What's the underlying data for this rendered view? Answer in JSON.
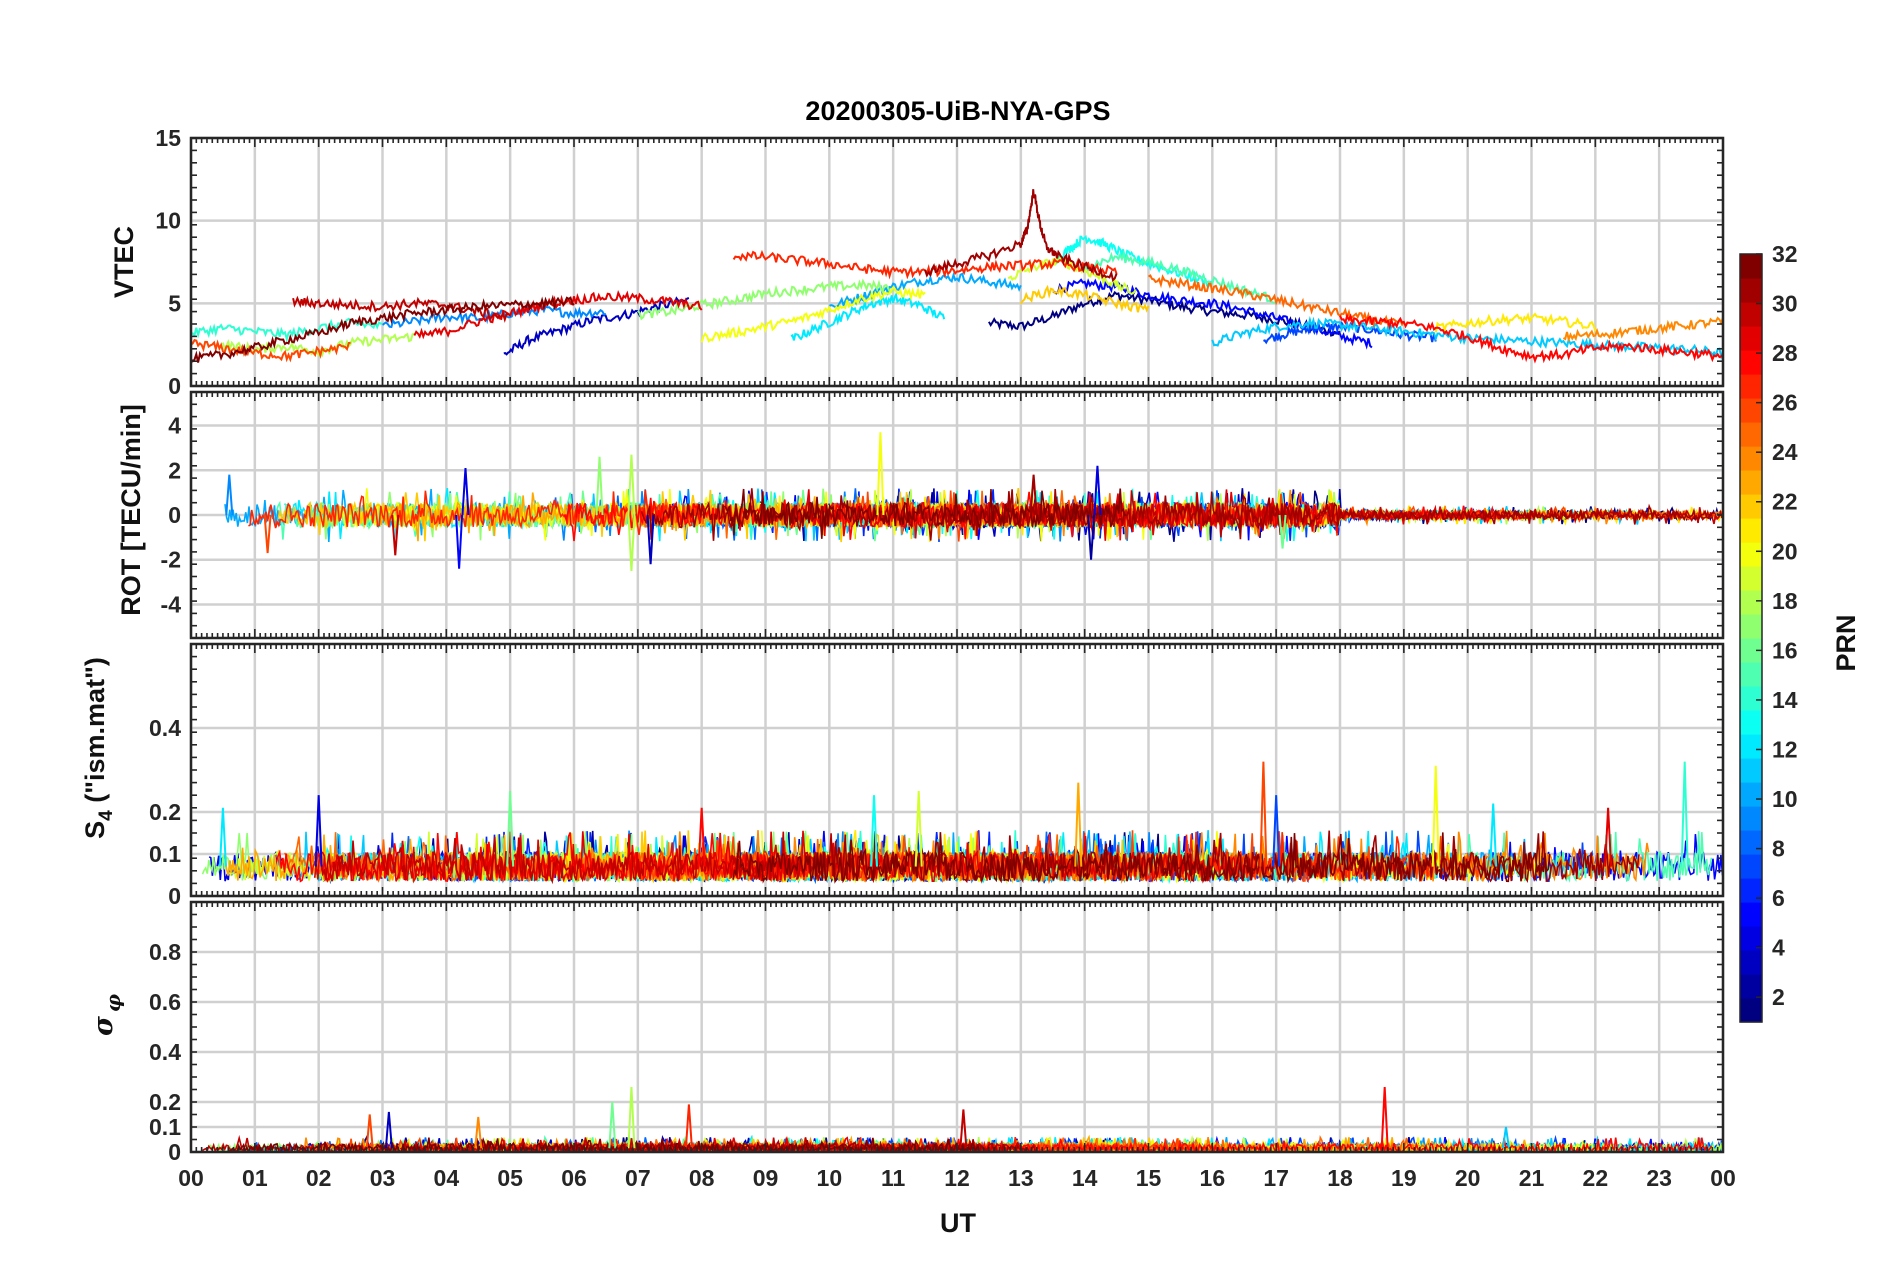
{
  "chart_data": {
    "type": "line",
    "title": "20200305-UiB-NYA-GPS",
    "xlabel": "UT",
    "x_tick_labels": [
      "00",
      "01",
      "02",
      "03",
      "04",
      "05",
      "06",
      "07",
      "08",
      "09",
      "10",
      "11",
      "12",
      "13",
      "14",
      "15",
      "16",
      "17",
      "18",
      "19",
      "20",
      "21",
      "22",
      "23",
      "00"
    ],
    "xlim": [
      0,
      24
    ],
    "grid": true,
    "colorbar": {
      "label": "PRN",
      "colormap": "jet",
      "range": [
        1,
        32
      ],
      "tick_labels": [
        "2",
        "4",
        "6",
        "8",
        "10",
        "12",
        "14",
        "16",
        "18",
        "20",
        "22",
        "24",
        "26",
        "28",
        "30",
        "32"
      ]
    },
    "panels": [
      {
        "id": "vtec",
        "ylabel": "VTEC",
        "ylim": [
          0,
          15
        ],
        "y_tick_labels": [
          "0",
          "5",
          "10",
          "15"
        ],
        "series": [
          {
            "prn": 1,
            "x": [
              12.5,
              13.0,
              13.5,
              14.0,
              14.5,
              15.0,
              15.5,
              16.0,
              16.5,
              17.0,
              17.5,
              18.0
            ],
            "y": [
              3.8,
              3.6,
              4.2,
              5.0,
              5.5,
              5.2,
              4.8,
              4.5,
              4.3,
              4.0,
              3.6,
              3.2
            ]
          },
          {
            "prn": 3,
            "x": [
              4.9,
              5.3,
              5.8,
              6.3,
              6.8,
              7.3,
              7.8
            ],
            "y": [
              1.9,
              2.8,
              3.4,
              4.0,
              4.3,
              4.8,
              5.2
            ]
          },
          {
            "prn": 5,
            "x": [
              13.5,
              14.0,
              14.5,
              15.0,
              15.5,
              16.0,
              16.5,
              17.0,
              17.5,
              18.0,
              18.5
            ],
            "y": [
              5.8,
              6.2,
              6.0,
              5.5,
              5.2,
              5.0,
              4.6,
              4.1,
              3.6,
              3.0,
              2.6
            ]
          },
          {
            "prn": 7,
            "x": [
              16.8,
              17.2,
              17.6,
              18.0,
              18.5,
              19.0,
              19.5
            ],
            "y": [
              2.8,
              3.2,
              3.5,
              3.6,
              3.4,
              3.1,
              2.9
            ]
          },
          {
            "prn": 9,
            "x": [
              3.0,
              3.5,
              4.0,
              4.5,
              5.0,
              5.5,
              6.0,
              6.5
            ],
            "y": [
              3.6,
              3.9,
              4.2,
              4.1,
              4.4,
              4.6,
              4.4,
              4.5
            ]
          },
          {
            "prn": 10,
            "x": [
              10.0,
              10.5,
              11.0,
              11.5,
              12.0,
              12.5,
              13.0
            ],
            "y": [
              4.8,
              5.4,
              6.0,
              6.4,
              6.6,
              6.3,
              6.0
            ]
          },
          {
            "prn": 11,
            "x": [
              16.0,
              16.5,
              17.0,
              17.5,
              18.0,
              18.5,
              19.0,
              19.5,
              20.0,
              20.5,
              21.0,
              21.5,
              22.0,
              22.5,
              23.0,
              23.5,
              24.0
            ],
            "y": [
              2.6,
              3.2,
              3.6,
              3.8,
              3.7,
              3.5,
              3.3,
              3.1,
              2.9,
              2.8,
              2.7,
              2.6,
              2.5,
              2.4,
              2.3,
              2.2,
              2.0
            ]
          },
          {
            "prn": 12,
            "x": [
              9.4,
              9.8,
              10.2,
              10.6,
              11.0,
              11.4,
              11.8
            ],
            "y": [
              2.8,
              3.5,
              4.2,
              4.9,
              5.3,
              4.9,
              4.1
            ]
          },
          {
            "prn": 13,
            "x": [
              13.5,
              13.8,
              14.0,
              14.3,
              14.6,
              15.0,
              15.5,
              16.0
            ],
            "y": [
              7.5,
              8.4,
              9.0,
              8.6,
              8.0,
              7.4,
              6.8,
              6.2
            ]
          },
          {
            "prn": 14,
            "x": [
              0.0,
              0.5,
              1.0,
              1.5,
              2.0,
              2.5,
              3.0
            ],
            "y": [
              3.2,
              3.5,
              3.3,
              3.1,
              3.5,
              3.8,
              3.6
            ]
          },
          {
            "prn": 15,
            "x": [
              14.0,
              14.5,
              15.0,
              15.5,
              16.0,
              16.5,
              17.0
            ],
            "y": [
              7.2,
              7.8,
              7.5,
              7.0,
              6.4,
              5.8,
              5.2
            ]
          },
          {
            "prn": 17,
            "x": [
              7.0,
              7.5,
              8.0,
              8.5,
              9.0,
              9.5,
              10.0,
              10.5,
              11.0
            ],
            "y": [
              4.3,
              4.5,
              4.9,
              5.2,
              5.6,
              5.8,
              6.0,
              6.1,
              5.9
            ]
          },
          {
            "prn": 18,
            "x": [
              0.5,
              1.0,
              1.5,
              2.0,
              2.5,
              3.0,
              3.5
            ],
            "y": [
              2.5,
              2.2,
              2.4,
              2.1,
              2.6,
              2.8,
              3.0
            ]
          },
          {
            "prn": 19,
            "x": [
              12.8,
              13.2,
              13.6,
              14.0,
              14.4,
              14.8
            ],
            "y": [
              6.5,
              7.2,
              7.6,
              7.0,
              6.3,
              5.6
            ]
          },
          {
            "prn": 20,
            "x": [
              8.0,
              8.5,
              9.0,
              9.5,
              10.0,
              10.5,
              11.0,
              11.5
            ],
            "y": [
              2.9,
              3.2,
              3.6,
              4.0,
              4.6,
              5.3,
              5.7,
              5.5
            ]
          },
          {
            "prn": 21,
            "x": [
              19.5,
              20.0,
              20.5,
              21.0,
              21.5,
              22.0
            ],
            "y": [
              3.5,
              3.8,
              4.0,
              4.1,
              3.9,
              3.6
            ]
          },
          {
            "prn": 22,
            "x": [
              13.0,
              13.5,
              14.0,
              14.5,
              15.0
            ],
            "y": [
              5.2,
              5.8,
              5.5,
              5.0,
              4.6
            ]
          },
          {
            "prn": 24,
            "x": [
              21.5,
              22.0,
              22.5,
              23.0,
              23.5,
              24.0
            ],
            "y": [
              3.0,
              3.1,
              3.3,
              3.5,
              3.7,
              3.9
            ]
          },
          {
            "prn": 25,
            "x": [
              15.0,
              15.5,
              16.0,
              16.5,
              17.0,
              17.5,
              18.0,
              18.5,
              19.0
            ],
            "y": [
              6.5,
              6.2,
              5.9,
              5.6,
              5.2,
              4.8,
              4.4,
              4.0,
              3.7
            ]
          },
          {
            "prn": 26,
            "x": [
              0.0,
              0.5,
              1.0,
              1.5,
              2.0,
              2.5
            ],
            "y": [
              2.6,
              2.3,
              2.0,
              1.8,
              2.1,
              2.4
            ]
          },
          {
            "prn": 27,
            "x": [
              8.5,
              9.0,
              9.5,
              10.0,
              10.5,
              11.0,
              11.5,
              12.0,
              12.5,
              13.0,
              13.5,
              14.0,
              14.5
            ],
            "y": [
              7.9,
              7.8,
              7.6,
              7.4,
              7.1,
              6.9,
              6.9,
              7.0,
              7.2,
              7.3,
              7.4,
              7.2,
              6.9
            ]
          },
          {
            "prn": 28,
            "x": [
              18.0,
              18.5,
              19.0,
              19.5,
              20.0,
              20.5,
              21.0,
              21.5,
              22.0,
              22.5,
              23.0,
              23.5,
              24.0
            ],
            "y": [
              4.0,
              3.9,
              3.8,
              3.5,
              3.0,
              2.3,
              1.8,
              1.9,
              2.3,
              2.4,
              2.2,
              2.0,
              1.8
            ]
          },
          {
            "prn": 29,
            "x": [
              3.5,
              4.0,
              4.5,
              5.0,
              5.5,
              6.0,
              6.5,
              7.0,
              7.5,
              8.0
            ],
            "y": [
              3.0,
              3.3,
              3.9,
              4.4,
              4.9,
              5.2,
              5.4,
              5.3,
              5.1,
              4.8
            ]
          },
          {
            "prn": 30,
            "x": [
              1.6,
              2.0,
              2.5,
              3.0,
              3.5,
              4.0,
              4.5,
              5.0
            ],
            "y": [
              5.1,
              5.0,
              4.9,
              4.8,
              5.0,
              4.9,
              4.5,
              4.1
            ]
          },
          {
            "prn": 31,
            "x": [
              11.5,
              12.0,
              12.5,
              13.0,
              13.1,
              13.2,
              13.3,
              13.4,
              13.6,
              14.0,
              14.5
            ],
            "y": [
              6.9,
              7.4,
              7.9,
              8.6,
              9.5,
              11.8,
              9.8,
              8.4,
              7.8,
              7.2,
              6.6
            ]
          },
          {
            "prn": 32,
            "x": [
              0.0,
              0.5,
              1.0,
              1.5,
              2.0,
              2.5,
              3.0,
              3.5,
              4.0,
              4.5,
              5.0,
              5.5,
              6.0
            ],
            "y": [
              1.6,
              1.9,
              2.3,
              2.8,
              3.2,
              3.8,
              4.1,
              4.4,
              4.6,
              4.8,
              4.9,
              5.0,
              5.1
            ]
          }
        ]
      },
      {
        "id": "rot",
        "ylabel": "ROT [TECU/min]",
        "ylim": [
          -5.5,
          5.5
        ],
        "y_tick_labels": [
          "-4",
          "-2",
          "0",
          "2",
          "4"
        ],
        "series_note": "noise around 0 for all PRNs",
        "spikes": [
          {
            "prn": 5,
            "x": 4.2,
            "y": -2.4
          },
          {
            "prn": 4,
            "x": 4.3,
            "y": 2.1
          },
          {
            "prn": 17,
            "x": 6.4,
            "y": 2.6
          },
          {
            "prn": 18,
            "x": 6.9,
            "y": 2.7
          },
          {
            "prn": 18,
            "x": 6.9,
            "y": -2.5
          },
          {
            "prn": 3,
            "x": 7.2,
            "y": -2.2
          },
          {
            "prn": 20,
            "x": 10.8,
            "y": 3.7
          },
          {
            "prn": 31,
            "x": 13.2,
            "y": 1.8
          },
          {
            "prn": 2,
            "x": 14.1,
            "y": -2.0
          },
          {
            "prn": 4,
            "x": 14.2,
            "y": 2.2
          },
          {
            "prn": 30,
            "x": 3.2,
            "y": -1.8
          },
          {
            "prn": 26,
            "x": 1.2,
            "y": -1.7
          },
          {
            "prn": 16,
            "x": 17.1,
            "y": -1.5
          },
          {
            "prn": 9,
            "x": 0.6,
            "y": 1.8
          }
        ]
      },
      {
        "id": "s4",
        "ylabel": "S4 (\"ism.mat\")",
        "ylim": [
          0,
          0.6
        ],
        "y_tick_labels": [
          "0",
          "0.1",
          "0.2",
          "0.4"
        ],
        "series_note": "baseline 0.05-0.1 for all PRNs",
        "spikes": [
          {
            "prn": 4,
            "x": 2.0,
            "y": 0.24
          },
          {
            "prn": 12,
            "x": 0.5,
            "y": 0.21
          },
          {
            "prn": 16,
            "x": 5.0,
            "y": 0.25
          },
          {
            "prn": 28,
            "x": 8.0,
            "y": 0.21
          },
          {
            "prn": 13,
            "x": 10.7,
            "y": 0.24
          },
          {
            "prn": 19,
            "x": 11.4,
            "y": 0.25
          },
          {
            "prn": 23,
            "x": 13.9,
            "y": 0.27
          },
          {
            "prn": 26,
            "x": 16.8,
            "y": 0.32
          },
          {
            "prn": 7,
            "x": 17.0,
            "y": 0.24
          },
          {
            "prn": 20,
            "x": 19.5,
            "y": 0.31
          },
          {
            "prn": 12,
            "x": 20.4,
            "y": 0.22
          },
          {
            "prn": 29,
            "x": 22.2,
            "y": 0.21
          },
          {
            "prn": 14,
            "x": 23.4,
            "y": 0.32
          }
        ]
      },
      {
        "id": "sigma_phi",
        "ylabel": "σφ",
        "ylim": [
          0,
          1.0
        ],
        "y_tick_labels": [
          "0",
          "0.1",
          "0.2",
          "0.4",
          "0.6",
          "0.8"
        ],
        "series_note": "baseline 0.0-0.05 for all PRNs",
        "spikes": [
          {
            "prn": 3,
            "x": 3.1,
            "y": 0.16
          },
          {
            "prn": 26,
            "x": 2.8,
            "y": 0.15
          },
          {
            "prn": 16,
            "x": 6.6,
            "y": 0.2
          },
          {
            "prn": 18,
            "x": 6.9,
            "y": 0.26
          },
          {
            "prn": 27,
            "x": 7.8,
            "y": 0.19
          },
          {
            "prn": 30,
            "x": 12.1,
            "y": 0.17
          },
          {
            "prn": 28,
            "x": 18.7,
            "y": 0.26
          },
          {
            "prn": 24,
            "x": 4.5,
            "y": 0.14
          },
          {
            "prn": 11,
            "x": 20.6,
            "y": 0.1
          }
        ]
      }
    ]
  }
}
